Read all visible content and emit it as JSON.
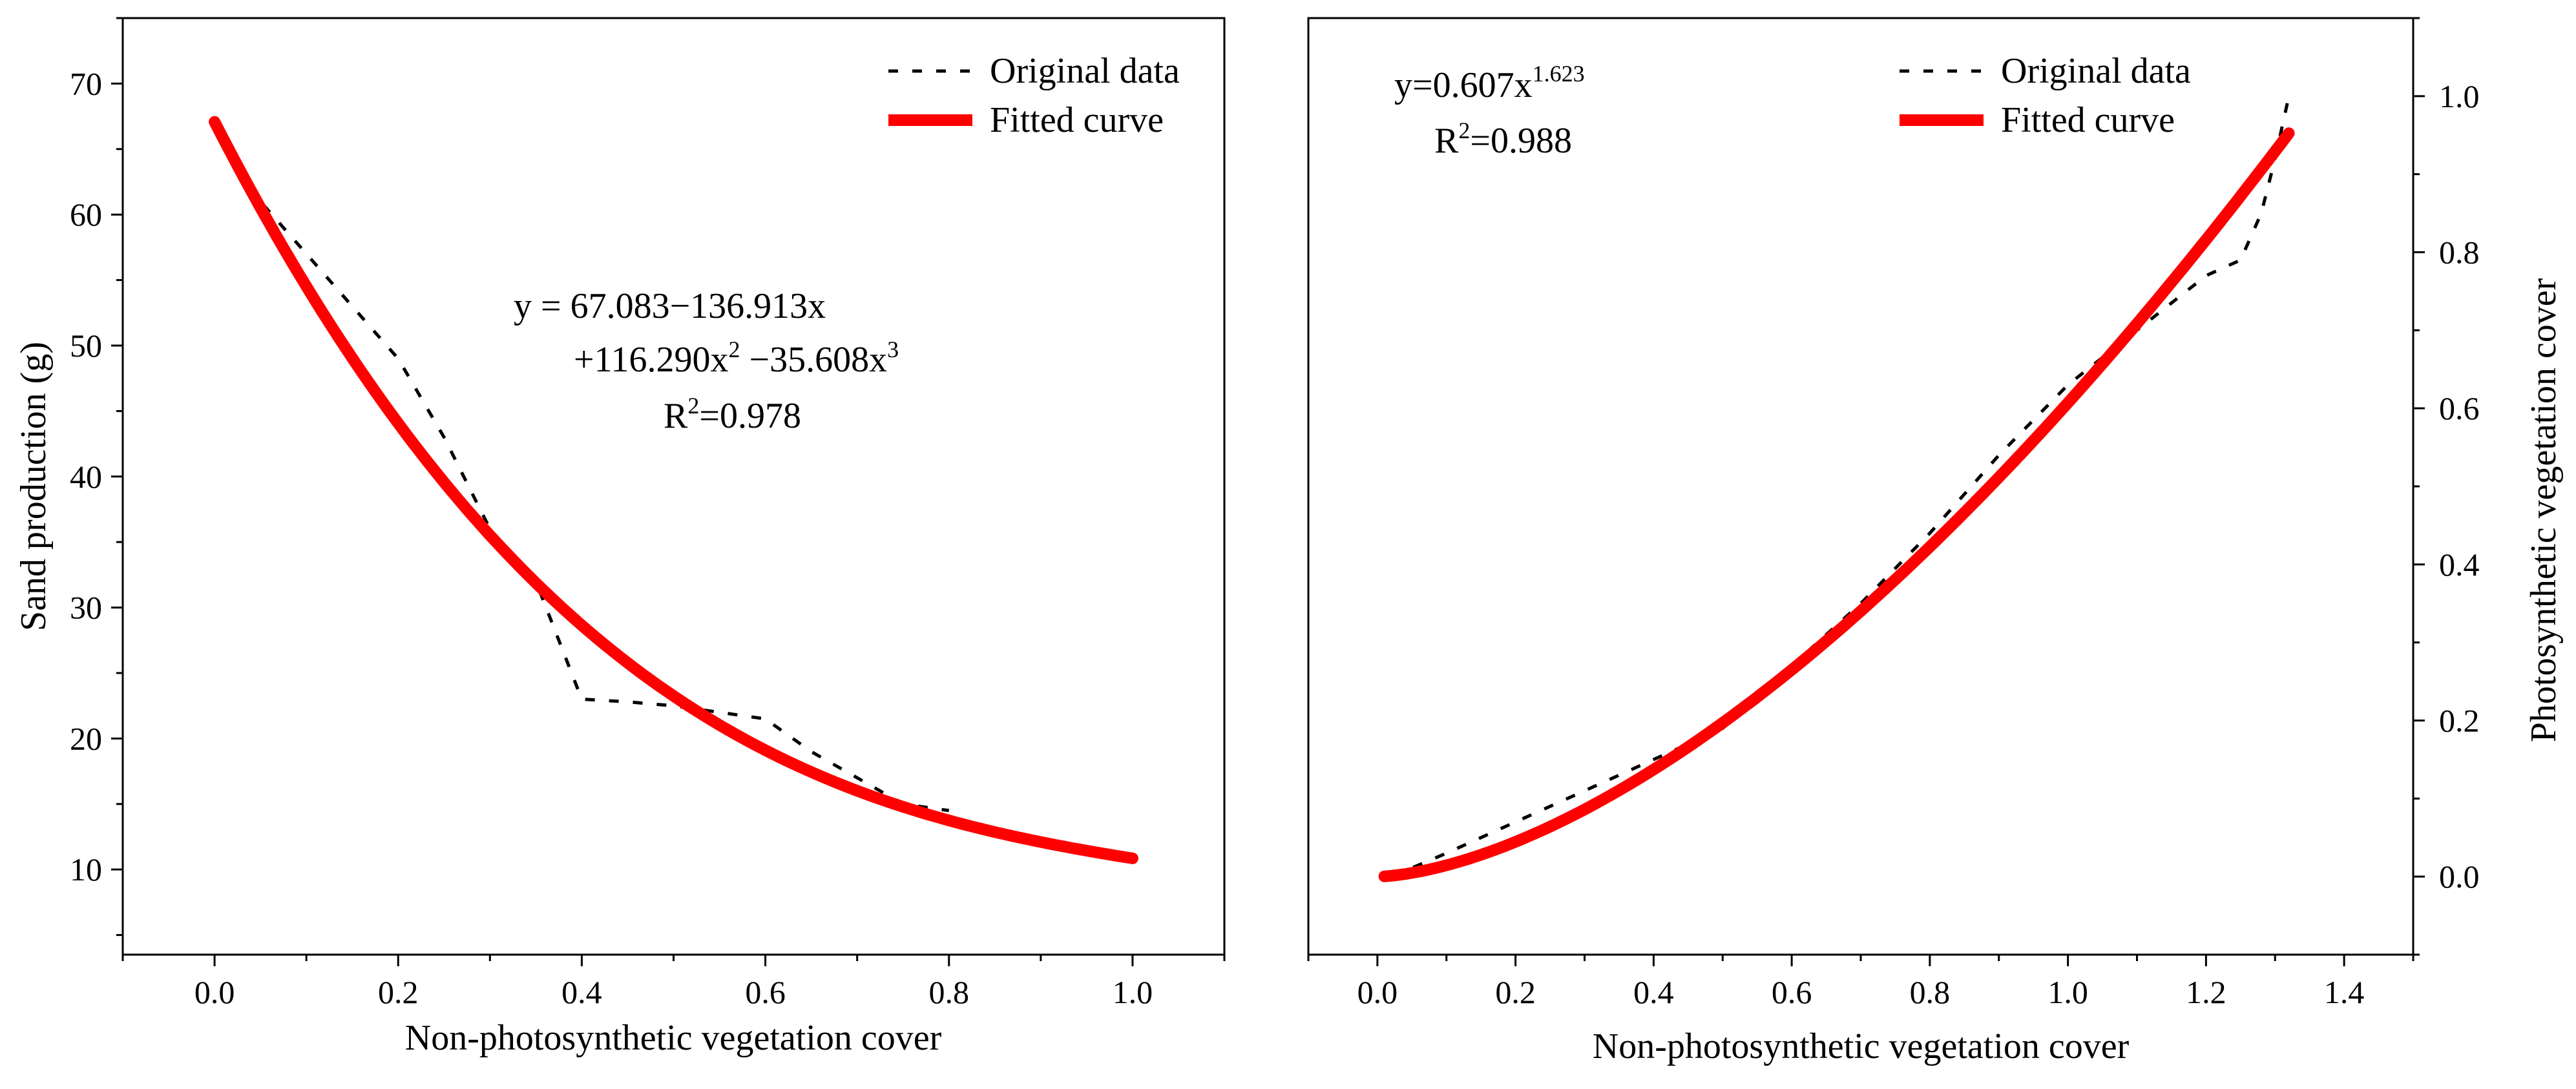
{
  "chart_data": [
    {
      "type": "line",
      "xlabel": "Non-photosynthetic vegetation cover",
      "ylabel": "Sand production (g)",
      "xlim": [
        -0.1,
        1.1
      ],
      "ylim": [
        3.5,
        75
      ],
      "xticks": [
        0.0,
        0.2,
        0.4,
        0.6,
        0.8,
        1.0
      ],
      "xtick_labels": [
        "0.0",
        "0.2",
        "0.4",
        "0.6",
        "0.8",
        "1.0"
      ],
      "yticks": [
        10,
        20,
        30,
        40,
        50,
        60,
        70
      ],
      "ytick_labels": [
        "10",
        "20",
        "30",
        "40",
        "50",
        "60",
        "70"
      ],
      "legend_position": "top-right",
      "series": [
        {
          "name": "Original data",
          "style": "dashed",
          "color": "#000000",
          "x": [
            0.0,
            0.05,
            0.1,
            0.15,
            0.2,
            0.25,
            0.3,
            0.35,
            0.4,
            0.45,
            0.5,
            0.55,
            0.6,
            0.65,
            0.7,
            0.75,
            0.8
          ],
          "y": [
            67.0,
            61.0,
            57.0,
            53.0,
            49.0,
            43.0,
            36.0,
            32.0,
            23.0,
            22.8,
            22.5,
            22.0,
            21.5,
            19.0,
            17.0,
            15.0,
            14.5
          ]
        },
        {
          "name": "Fitted curve",
          "style": "solid",
          "color": "#ff0000",
          "coefficients": [
            67.083,
            -136.913,
            116.29,
            -35.608
          ],
          "x_range": [
            0.0,
            1.0
          ]
        }
      ],
      "equation": {
        "line1": "y = 67.083−136.913x",
        "line2_a": "+116.290x",
        "line2_sup1": "2",
        "line2_b": " −35.608x",
        "line2_sup2": "3",
        "line3_a": "R",
        "line3_sup": "2",
        "line3_b": "=0.978"
      }
    },
    {
      "type": "line",
      "xlabel": "Non-photosynthetic vegetation cover",
      "ylabel": "Photosynthetic vegetation cover",
      "y_axis_side": "right",
      "xlim": [
        -0.1,
        1.5
      ],
      "ylim": [
        -0.1,
        1.1
      ],
      "xticks": [
        0.0,
        0.2,
        0.4,
        0.6,
        0.8,
        1.0,
        1.2,
        1.4
      ],
      "xtick_labels": [
        "0.0",
        "0.2",
        "0.4",
        "0.6",
        "0.8",
        "1.0",
        "1.2",
        "1.4"
      ],
      "yticks": [
        0.0,
        0.2,
        0.4,
        0.6,
        0.8,
        1.0
      ],
      "ytick_labels": [
        "0.0",
        "0.2",
        "0.4",
        "0.6",
        "0.8",
        "1.0"
      ],
      "legend_position": "top-right",
      "series": [
        {
          "name": "Original data",
          "style": "dashed",
          "color": "#000000",
          "x": [
            0.02,
            0.1,
            0.2,
            0.3,
            0.4,
            0.5,
            0.6,
            0.7,
            0.8,
            0.9,
            1.0,
            1.1,
            1.2,
            1.25,
            1.28,
            1.3,
            1.32
          ],
          "y": [
            0.0,
            0.03,
            0.07,
            0.11,
            0.15,
            0.19,
            0.27,
            0.35,
            0.44,
            0.54,
            0.63,
            0.7,
            0.77,
            0.79,
            0.85,
            0.92,
            1.0
          ]
        },
        {
          "name": "Fitted curve",
          "style": "solid",
          "color": "#ff0000",
          "coefficient": 0.607,
          "exponent": 1.623,
          "x_range": [
            0.01,
            1.32
          ]
        }
      ],
      "equation": {
        "line1_a": "y=0.607x",
        "line1_sup": "1.623",
        "line2_a": "R",
        "line2_sup": "2",
        "line2_b": "=0.988"
      }
    }
  ]
}
